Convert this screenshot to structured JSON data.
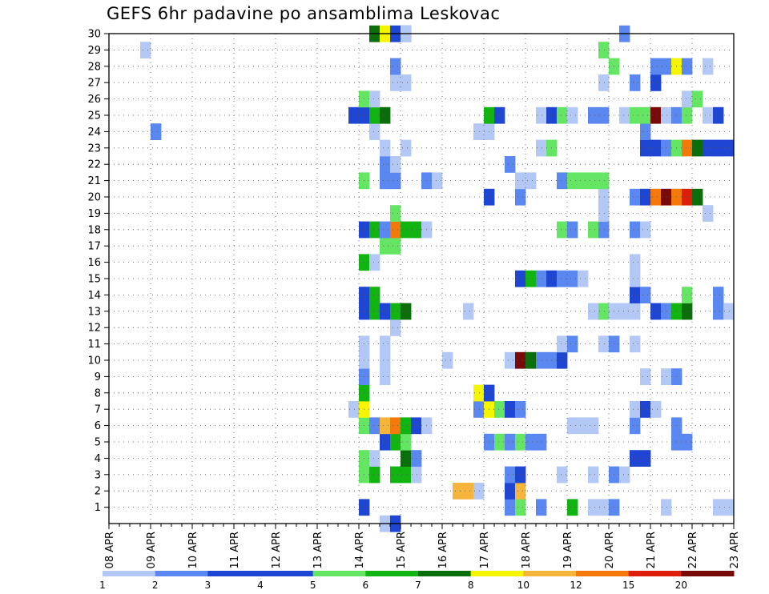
{
  "chart_data": {
    "type": "heatmap",
    "title": "GEFS 6hr padavine po ansamblima Leskovac",
    "x_tick_labels": [
      "08 APR",
      "09 APR",
      "10 APR",
      "11 APR",
      "12 APR",
      "13 APR",
      "14 APR",
      "15 APR",
      "16 APR",
      "17 APR",
      "18 APR",
      "19 APR",
      "20 APR",
      "21 APR",
      "22 APR",
      "23 APR"
    ],
    "y_tick_labels": [
      "1",
      "2",
      "3",
      "4",
      "5",
      "6",
      "7",
      "8",
      "9",
      "10",
      "11",
      "12",
      "13",
      "14",
      "15",
      "16",
      "17",
      "18",
      "19",
      "20",
      "21",
      "22",
      "23",
      "24",
      "25",
      "26",
      "27",
      "28",
      "29",
      "30"
    ],
    "xlim": [
      "08 APR",
      "23 APR"
    ],
    "ylim": [
      0,
      30
    ],
    "time_step_hours": 6,
    "grid": true,
    "legend_position": "bottom",
    "colorbar": {
      "tick_labels": [
        "1",
        "2",
        "3",
        "4",
        "5",
        "6",
        "7",
        "8",
        "10",
        "12",
        "15",
        "20"
      ],
      "colors": [
        "#b4c8f5",
        "#5a87f0",
        "#1e46d2",
        "#1e46d2",
        "#64e664",
        "#12b412",
        "#0a6e0a",
        "#f5f500",
        "#f5b43c",
        "#f5780a",
        "#dc1e0a",
        "#780a0a"
      ]
    },
    "members": {
      "30": [
        [
          "14 APR",
          6,
          7
        ],
        [
          "14 APR",
          12,
          9
        ],
        [
          "14 APR",
          18,
          3
        ],
        [
          "14 APR",
          24,
          3
        ],
        [
          "15 APR",
          0,
          1
        ],
        [
          "20 APR",
          6,
          2
        ]
      ],
      "29": [
        [
          "08 APR",
          18,
          1
        ],
        [
          "19 APR",
          18,
          5
        ]
      ],
      "28": [
        [
          "14 APR",
          18,
          2
        ],
        [
          "20 APR",
          0,
          5
        ],
        [
          "21 APR",
          0,
          2
        ],
        [
          "21 APR",
          6,
          2
        ],
        [
          "21 APR",
          12,
          8
        ],
        [
          "21 APR",
          18,
          2
        ],
        [
          "22 APR",
          6,
          1
        ]
      ],
      "27": [
        [
          "14 APR",
          18,
          1
        ],
        [
          "15 APR",
          0,
          1
        ],
        [
          "19 APR",
          18,
          1
        ],
        [
          "20 APR",
          12,
          2
        ],
        [
          "21 APR",
          0,
          3
        ]
      ],
      "26": [
        [
          "14 APR",
          0,
          5
        ],
        [
          "14 APR",
          6,
          1
        ],
        [
          "21 APR",
          18,
          1
        ],
        [
          "22 APR",
          0,
          5
        ]
      ],
      "25": [
        [
          "13 APR",
          18,
          3
        ],
        [
          "14 APR",
          0,
          3
        ],
        [
          "14 APR",
          6,
          6
        ],
        [
          "14 APR",
          12,
          7
        ],
        [
          "17 APR",
          0,
          6
        ],
        [
          "17 APR",
          6,
          3
        ],
        [
          "18 APR",
          6,
          1
        ],
        [
          "18 APR",
          12,
          3
        ],
        [
          "18 APR",
          18,
          5
        ],
        [
          "19 APR",
          0,
          1
        ],
        [
          "19 APR",
          12,
          2
        ],
        [
          "19 APR",
          18,
          2
        ],
        [
          "20 APR",
          6,
          1
        ],
        [
          "20 APR",
          12,
          5
        ],
        [
          "20 APR",
          18,
          5
        ],
        [
          "21 APR",
          0,
          20
        ],
        [
          "21 APR",
          6,
          1
        ],
        [
          "21 APR",
          12,
          2
        ],
        [
          "21 APR",
          18,
          5
        ],
        [
          "22 APR",
          6,
          1
        ],
        [
          "22 APR",
          12,
          3
        ]
      ],
      "24": [
        [
          "09 APR",
          0,
          2
        ],
        [
          "14 APR",
          6,
          1
        ],
        [
          "16 APR",
          18,
          1
        ],
        [
          "17 APR",
          0,
          1
        ],
        [
          "20 APR",
          18,
          2
        ]
      ],
      "23": [
        [
          "14 APR",
          12,
          1
        ],
        [
          "15 APR",
          0,
          1
        ],
        [
          "18 APR",
          6,
          1
        ],
        [
          "18 APR",
          12,
          5
        ],
        [
          "20 APR",
          18,
          3
        ],
        [
          "21 APR",
          0,
          3
        ],
        [
          "21 APR",
          6,
          2
        ],
        [
          "21 APR",
          12,
          5
        ],
        [
          "21 APR",
          18,
          12
        ],
        [
          "22 APR",
          0,
          7
        ],
        [
          "22 APR",
          6,
          3
        ],
        [
          "22 APR",
          12,
          3
        ],
        [
          "22 APR",
          18,
          3
        ]
      ],
      "22": [
        [
          "14 APR",
          12,
          2
        ],
        [
          "14 APR",
          18,
          1
        ],
        [
          "17 APR",
          12,
          2
        ]
      ],
      "21": [
        [
          "14 APR",
          0,
          5
        ],
        [
          "14 APR",
          12,
          2
        ],
        [
          "14 APR",
          18,
          2
        ],
        [
          "15 APR",
          12,
          2
        ],
        [
          "15 APR",
          18,
          1
        ],
        [
          "17 APR",
          18,
          1
        ],
        [
          "18 APR",
          0,
          1
        ],
        [
          "18 APR",
          18,
          2
        ],
        [
          "19 APR",
          0,
          5
        ],
        [
          "19 APR",
          6,
          5
        ],
        [
          "19 APR",
          12,
          5
        ],
        [
          "19 APR",
          18,
          5
        ]
      ],
      "20": [
        [
          "17 APR",
          0,
          3
        ],
        [
          "17 APR",
          18,
          2
        ],
        [
          "19 APR",
          18,
          1
        ],
        [
          "20 APR",
          12,
          2
        ],
        [
          "20 APR",
          18,
          3
        ],
        [
          "21 APR",
          0,
          12
        ],
        [
          "21 APR",
          6,
          20
        ],
        [
          "21 APR",
          12,
          12
        ],
        [
          "21 APR",
          18,
          15
        ],
        [
          "22 APR",
          0,
          7
        ]
      ],
      "19": [
        [
          "14 APR",
          18,
          5
        ],
        [
          "19 APR",
          18,
          1
        ],
        [
          "22 APR",
          6,
          1
        ]
      ],
      "18": [
        [
          "14 APR",
          0,
          3
        ],
        [
          "14 APR",
          6,
          6
        ],
        [
          "14 APR",
          12,
          2
        ],
        [
          "14 APR",
          18,
          12
        ],
        [
          "15 APR",
          0,
          6
        ],
        [
          "15 APR",
          6,
          6
        ],
        [
          "15 APR",
          12,
          1
        ],
        [
          "18 APR",
          18,
          5
        ],
        [
          "19 APR",
          0,
          2
        ],
        [
          "19 APR",
          12,
          5
        ],
        [
          "19 APR",
          18,
          2
        ],
        [
          "20 APR",
          12,
          2
        ],
        [
          "20 APR",
          18,
          1
        ]
      ],
      "17": [
        [
          "14 APR",
          12,
          5
        ],
        [
          "14 APR",
          18,
          5
        ]
      ],
      "16": [
        [
          "14 APR",
          0,
          6
        ],
        [
          "14 APR",
          6,
          1
        ],
        [
          "20 APR",
          12,
          1
        ]
      ],
      "15": [
        [
          "17 APR",
          18,
          3
        ],
        [
          "18 APR",
          0,
          6
        ],
        [
          "18 APR",
          6,
          2
        ],
        [
          "18 APR",
          12,
          3
        ],
        [
          "18 APR",
          18,
          2
        ],
        [
          "19 APR",
          0,
          2
        ],
        [
          "19 APR",
          6,
          1
        ],
        [
          "20 APR",
          12,
          1
        ]
      ],
      "14": [
        [
          "14 APR",
          0,
          3
        ],
        [
          "14 APR",
          6,
          6
        ],
        [
          "20 APR",
          12,
          3
        ],
        [
          "20 APR",
          18,
          2
        ],
        [
          "21 APR",
          18,
          5
        ],
        [
          "22 APR",
          12,
          2
        ]
      ],
      "13": [
        [
          "14 APR",
          0,
          3
        ],
        [
          "14 APR",
          6,
          6
        ],
        [
          "14 APR",
          12,
          3
        ],
        [
          "14 APR",
          18,
          6
        ],
        [
          "15 APR",
          0,
          7
        ],
        [
          "16 APR",
          12,
          1
        ],
        [
          "19 APR",
          12,
          1
        ],
        [
          "19 APR",
          18,
          5
        ],
        [
          "20 APR",
          0,
          1
        ],
        [
          "20 APR",
          6,
          1
        ],
        [
          "20 APR",
          12,
          1
        ],
        [
          "21 APR",
          0,
          3
        ],
        [
          "21 APR",
          6,
          2
        ],
        [
          "21 APR",
          12,
          6
        ],
        [
          "21 APR",
          18,
          7
        ],
        [
          "22 APR",
          12,
          2
        ],
        [
          "22 APR",
          18,
          1
        ]
      ],
      "12": [
        [
          "14 APR",
          18,
          1
        ]
      ],
      "11": [
        [
          "14 APR",
          0,
          1
        ],
        [
          "14 APR",
          12,
          1
        ],
        [
          "18 APR",
          18,
          1
        ],
        [
          "19 APR",
          0,
          2
        ],
        [
          "19 APR",
          18,
          1
        ],
        [
          "20 APR",
          0,
          2
        ],
        [
          "20 APR",
          12,
          1
        ]
      ],
      "10": [
        [
          "14 APR",
          0,
          1
        ],
        [
          "14 APR",
          12,
          1
        ],
        [
          "16 APR",
          0,
          1
        ],
        [
          "17 APR",
          12,
          1
        ],
        [
          "17 APR",
          18,
          20
        ],
        [
          "18 APR",
          0,
          7
        ],
        [
          "18 APR",
          6,
          2
        ],
        [
          "18 APR",
          12,
          2
        ],
        [
          "18 APR",
          18,
          3
        ]
      ],
      "9": [
        [
          "14 APR",
          0,
          2
        ],
        [
          "14 APR",
          12,
          1
        ],
        [
          "20 APR",
          18,
          1
        ],
        [
          "21 APR",
          6,
          1
        ],
        [
          "21 APR",
          12,
          2
        ]
      ],
      "8": [
        [
          "14 APR",
          0,
          6
        ],
        [
          "16 APR",
          18,
          8
        ],
        [
          "17 APR",
          0,
          3
        ]
      ],
      "7": [
        [
          "13 APR",
          18,
          1
        ],
        [
          "14 APR",
          0,
          8
        ],
        [
          "16 APR",
          18,
          2
        ],
        [
          "17 APR",
          0,
          8
        ],
        [
          "17 APR",
          6,
          5
        ],
        [
          "17 APR",
          12,
          3
        ],
        [
          "17 APR",
          18,
          2
        ],
        [
          "20 APR",
          12,
          1
        ],
        [
          "20 APR",
          18,
          3
        ],
        [
          "21 APR",
          0,
          1
        ]
      ],
      "6": [
        [
          "14 APR",
          0,
          5
        ],
        [
          "14 APR",
          6,
          2
        ],
        [
          "14 APR",
          12,
          10
        ],
        [
          "14 APR",
          18,
          12
        ],
        [
          "15 APR",
          0,
          6
        ],
        [
          "15 APR",
          6,
          3
        ],
        [
          "15 APR",
          12,
          1
        ],
        [
          "19 APR",
          0,
          1
        ],
        [
          "19 APR",
          6,
          1
        ],
        [
          "19 APR",
          12,
          1
        ],
        [
          "20 APR",
          12,
          2
        ],
        [
          "21 APR",
          12,
          2
        ]
      ],
      "5": [
        [
          "14 APR",
          12,
          3
        ],
        [
          "14 APR",
          18,
          6
        ],
        [
          "15 APR",
          0,
          5
        ],
        [
          "17 APR",
          0,
          2
        ],
        [
          "17 APR",
          6,
          5
        ],
        [
          "17 APR",
          12,
          2
        ],
        [
          "17 APR",
          18,
          5
        ],
        [
          "18 APR",
          0,
          2
        ],
        [
          "18 APR",
          6,
          2
        ],
        [
          "21 APR",
          12,
          2
        ],
        [
          "21 APR",
          18,
          2
        ]
      ],
      "4": [
        [
          "14 APR",
          0,
          5
        ],
        [
          "14 APR",
          6,
          1
        ],
        [
          "15 APR",
          0,
          7
        ],
        [
          "15 APR",
          6,
          2
        ],
        [
          "20 APR",
          12,
          3
        ],
        [
          "20 APR",
          18,
          3
        ]
      ],
      "3": [
        [
          "14 APR",
          0,
          5
        ],
        [
          "14 APR",
          6,
          6
        ],
        [
          "14 APR",
          18,
          6
        ],
        [
          "15 APR",
          0,
          6
        ],
        [
          "15 APR",
          6,
          1
        ],
        [
          "17 APR",
          12,
          2
        ],
        [
          "17 APR",
          18,
          3
        ],
        [
          "18 APR",
          18,
          1
        ],
        [
          "19 APR",
          12,
          1
        ],
        [
          "20 APR",
          0,
          2
        ],
        [
          "20 APR",
          6,
          1
        ]
      ],
      "2": [
        [
          "16 APR",
          6,
          10
        ],
        [
          "16 APR",
          12,
          10
        ],
        [
          "16 APR",
          18,
          1
        ],
        [
          "17 APR",
          12,
          3
        ],
        [
          "17 APR",
          18,
          10
        ]
      ],
      "1": [
        [
          "14 APR",
          0,
          3
        ],
        [
          "17 APR",
          12,
          2
        ],
        [
          "17 APR",
          18,
          5
        ],
        [
          "18 APR",
          6,
          2
        ],
        [
          "19 APR",
          0,
          6
        ],
        [
          "19 APR",
          12,
          1
        ],
        [
          "19 APR",
          18,
          1
        ],
        [
          "20 APR",
          0,
          2
        ],
        [
          "21 APR",
          6,
          1
        ],
        [
          "22 APR",
          12,
          1
        ],
        [
          "22 APR",
          18,
          1
        ]
      ],
      "0": [
        [
          "14 APR",
          12,
          1
        ],
        [
          "14 APR",
          18,
          3
        ]
      ]
    }
  }
}
